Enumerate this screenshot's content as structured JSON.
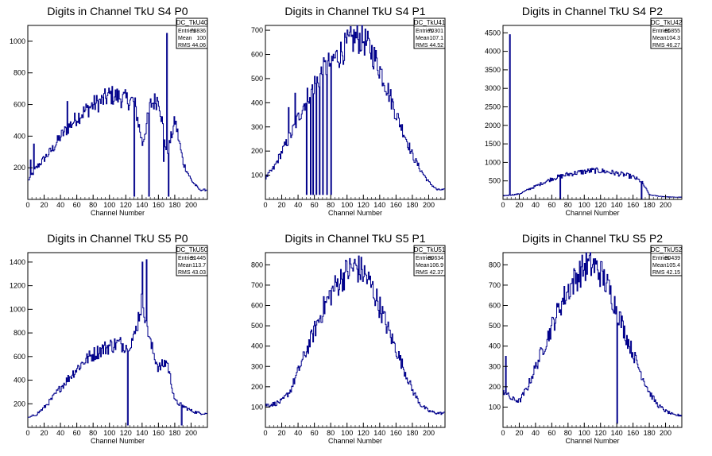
{
  "colors": {
    "line": "#00008b",
    "axis": "#000000",
    "background": "#ffffff"
  },
  "chart_data": [
    {
      "type": "histogram",
      "title": "Digits in Channel TkU S4 P0",
      "xlabel": "Channel Number",
      "ylabel": "",
      "xlim": [
        0,
        220
      ],
      "ylim": [
        0,
        1100
      ],
      "xticks": [
        0,
        20,
        40,
        60,
        80,
        100,
        120,
        140,
        160,
        180,
        200
      ],
      "yticks": [
        200,
        400,
        600,
        800,
        1000
      ],
      "stats": {
        "name": "DC_TkU40",
        "rows": [
          [
            "Entries",
            "78836"
          ],
          [
            "Mean",
            "100"
          ],
          [
            "RMS",
            "44.06"
          ]
        ]
      },
      "bin_width": 10,
      "values": [
        120,
        200,
        260,
        320,
        400,
        460,
        520,
        560,
        600,
        620,
        660,
        650,
        630,
        620,
        350,
        600,
        640,
        280,
        500,
        230,
        120,
        60
      ],
      "spikes": [
        [
          3,
          250
        ],
        [
          7,
          350
        ],
        [
          48,
          620
        ],
        [
          130,
          20
        ],
        [
          148,
          20
        ],
        [
          166,
          240
        ],
        [
          170,
          1050
        ],
        [
          172,
          20
        ]
      ]
    },
    {
      "type": "histogram",
      "title": "Digits in Channel TkU S4 P1",
      "xlabel": "Channel Number",
      "ylabel": "",
      "xlim": [
        0,
        220
      ],
      "ylim": [
        0,
        720
      ],
      "xticks": [
        0,
        20,
        40,
        60,
        80,
        100,
        120,
        140,
        160,
        180,
        200
      ],
      "yticks": [
        100,
        200,
        300,
        400,
        500,
        600,
        700
      ],
      "stats": {
        "name": "DC_TkU41",
        "rows": [
          [
            "Entries",
            "70301"
          ],
          [
            "Mean",
            "107.1"
          ],
          [
            "RMS",
            "44.52"
          ]
        ]
      },
      "bin_width": 10,
      "values": [
        90,
        130,
        200,
        260,
        340,
        420,
        480,
        530,
        570,
        600,
        640,
        670,
        660,
        610,
        540,
        450,
        350,
        270,
        180,
        120,
        70,
        40
      ],
      "spikes": [
        [
          50,
          20
        ],
        [
          55,
          20
        ],
        [
          58,
          20
        ],
        [
          62,
          20
        ],
        [
          66,
          20
        ],
        [
          70,
          20
        ],
        [
          75,
          20
        ],
        [
          80,
          20
        ],
        [
          28,
          380
        ],
        [
          36,
          440
        ]
      ]
    },
    {
      "type": "histogram",
      "title": "Digits in Channel TkU S4 P2",
      "xlabel": "Channel Number",
      "ylabel": "",
      "xlim": [
        0,
        220
      ],
      "ylim": [
        0,
        4700
      ],
      "xticks": [
        0,
        20,
        40,
        60,
        80,
        100,
        120,
        140,
        160,
        180,
        200
      ],
      "yticks": [
        500,
        1000,
        1500,
        2000,
        2500,
        3000,
        3500,
        4000,
        4500
      ],
      "stats": {
        "name": "DC_TkU42",
        "rows": [
          [
            "Entries",
            "65855"
          ],
          [
            "Mean",
            "104.3"
          ],
          [
            "RMS",
            "46.27"
          ]
        ]
      },
      "bin_width": 10,
      "values": [
        100,
        120,
        150,
        260,
        360,
        460,
        560,
        620,
        680,
        720,
        750,
        780,
        770,
        740,
        700,
        660,
        600,
        480,
        120,
        90,
        70,
        60
      ],
      "spikes": [
        [
          8,
          4450
        ],
        [
          70,
          20
        ],
        [
          170,
          20
        ]
      ]
    },
    {
      "type": "histogram",
      "title": "Digits in Channel TkU S5 P0",
      "xlabel": "Channel Number",
      "ylabel": "",
      "xlim": [
        0,
        220
      ],
      "ylim": [
        0,
        1480
      ],
      "xticks": [
        0,
        20,
        40,
        60,
        80,
        100,
        120,
        140,
        160,
        180,
        200
      ],
      "yticks": [
        200,
        400,
        600,
        800,
        1000,
        1200,
        1400
      ],
      "stats": {
        "name": "DC_TkU50",
        "rows": [
          [
            "Entries",
            "91445"
          ],
          [
            "Mean",
            "113.7"
          ],
          [
            "RMS",
            "43.03"
          ]
        ]
      },
      "bin_width": 10,
      "values": [
        80,
        110,
        170,
        250,
        340,
        420,
        500,
        570,
        620,
        660,
        690,
        710,
        700,
        760,
        1100,
        700,
        500,
        560,
        220,
        180,
        140,
        120
      ],
      "spikes": [
        [
          122,
          20
        ],
        [
          140,
          1400
        ],
        [
          145,
          1420
        ],
        [
          188,
          20
        ]
      ]
    },
    {
      "type": "histogram",
      "title": "Digits in Channel TkU S5 P1",
      "xlabel": "Channel Number",
      "ylabel": "",
      "xlim": [
        0,
        220
      ],
      "ylim": [
        0,
        860
      ],
      "xticks": [
        0,
        20,
        40,
        60,
        80,
        100,
        120,
        140,
        160,
        180,
        200
      ],
      "yticks": [
        100,
        200,
        300,
        400,
        500,
        600,
        700,
        800
      ],
      "stats": {
        "name": "DC_TkU51",
        "rows": [
          [
            "Entries",
            "80634"
          ],
          [
            "Mean",
            "106.9"
          ],
          [
            "RMS",
            "42.37"
          ]
        ]
      },
      "bin_width": 10,
      "values": [
        110,
        115,
        130,
        180,
        280,
        380,
        480,
        580,
        660,
        720,
        770,
        790,
        760,
        690,
        590,
        480,
        380,
        280,
        180,
        110,
        80,
        70
      ],
      "spikes": []
    },
    {
      "type": "histogram",
      "title": "Digits in Channel TkU S5 P2",
      "xlabel": "Channel Number",
      "ylabel": "",
      "xlim": [
        0,
        220
      ],
      "ylim": [
        0,
        860
      ],
      "xticks": [
        0,
        20,
        40,
        60,
        80,
        100,
        120,
        140,
        160,
        180,
        200
      ],
      "yticks": [
        100,
        200,
        300,
        400,
        500,
        600,
        700,
        800
      ],
      "stats": {
        "name": "DC_TkU52",
        "rows": [
          [
            "Entries",
            "80439"
          ],
          [
            "Mean",
            "105.4"
          ],
          [
            "RMS",
            "42.15"
          ]
        ]
      },
      "bin_width": 10,
      "values": [
        180,
        140,
        130,
        200,
        300,
        400,
        500,
        600,
        680,
        740,
        790,
        800,
        760,
        680,
        580,
        460,
        360,
        260,
        170,
        110,
        80,
        60
      ],
      "spikes": [
        [
          3,
          350
        ],
        [
          140,
          20
        ]
      ]
    }
  ]
}
